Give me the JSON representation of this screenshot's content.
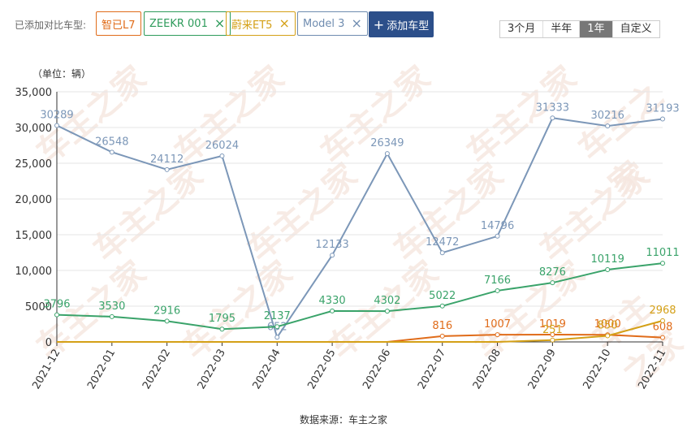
{
  "toolbar": {
    "compare_label": "已添加对比车型:",
    "tags": [
      {
        "label": "智已L7",
        "color": "#e06c1a",
        "removable": false
      },
      {
        "label": "ZEEKR 001",
        "color": "#2e9b5b",
        "removable": true
      },
      {
        "label": "蔚来ET5",
        "color": "#d4a017",
        "removable": true
      },
      {
        "label": "Model 3",
        "color": "#6f8cb0",
        "removable": true
      }
    ],
    "add_label": "添加车型",
    "add_icon": "+",
    "close_icon": "×",
    "ranges": [
      "3个月",
      "半年",
      "1年",
      "自定义"
    ],
    "active_range": "1年"
  },
  "unit_label": "（单位：辆）",
  "source_label": "数据来源：车主之家",
  "watermark": "车主之家",
  "chart_data": {
    "type": "line",
    "x": [
      "2021-12",
      "2022-01",
      "2022-02",
      "2022-03",
      "2022-04",
      "2022-05",
      "2022-06",
      "2022-07",
      "2022-08",
      "2022-09",
      "2022-10",
      "2022-11"
    ],
    "ylim": [
      0,
      35000
    ],
    "yticks": [
      "0",
      "5000",
      "10,000",
      "15,000",
      "20,000",
      "25,000",
      "30,000",
      "35,000"
    ],
    "grid": true,
    "series": [
      {
        "name": "Model 3",
        "color": "#7c97b8",
        "values": [
          30289,
          26548,
          24112,
          26024,
          652,
          12133,
          26349,
          12472,
          14796,
          31333,
          30216,
          31193
        ],
        "labels": [
          "30289",
          "26548",
          "24112",
          "26024",
          "652",
          "12133",
          "26349",
          "12472",
          "14796",
          "31333",
          "30216",
          "31193"
        ]
      },
      {
        "name": "ZEEKR 001",
        "color": "#3aa36a",
        "values": [
          3796,
          3530,
          2916,
          1795,
          2137,
          4330,
          4302,
          5022,
          7166,
          8276,
          10119,
          11011
        ],
        "labels": [
          "3796",
          "3530",
          "2916",
          "1795",
          "2137",
          "4330",
          "4302",
          "5022",
          "7166",
          "8276",
          "10119",
          "11011"
        ]
      },
      {
        "name": "智已L7",
        "color": "#e06c1a",
        "values": [
          0,
          0,
          0,
          0,
          0,
          0,
          0,
          816,
          1007,
          1019,
          1000,
          608
        ],
        "labels": [
          "",
          "",
          "",
          "",
          "",
          "",
          "",
          "816",
          "1007",
          "1019",
          "1000",
          "608"
        ]
      },
      {
        "name": "蔚来ET5",
        "color": "#d4a017",
        "values": [
          0,
          0,
          0,
          0,
          0,
          0,
          0,
          0,
          0,
          251,
          850,
          2968
        ],
        "labels": [
          "",
          "",
          "",
          "",
          "",
          "",
          "",
          "",
          "",
          "251",
          "850",
          "2968"
        ]
      }
    ]
  }
}
